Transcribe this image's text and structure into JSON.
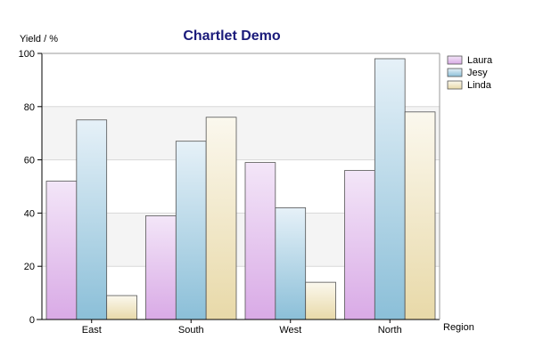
{
  "chart_data": {
    "type": "bar",
    "title": "Chartlet Demo",
    "title_color": "#1a1a7a",
    "xlabel": "Region",
    "ylabel": "Yield / %",
    "categories": [
      "East",
      "South",
      "West",
      "North"
    ],
    "ylim": [
      0,
      100
    ],
    "yticks": [
      0,
      20,
      40,
      60,
      80,
      100
    ],
    "grid": true,
    "legend_position": "top-right",
    "series": [
      {
        "name": "Laura",
        "values": [
          52,
          39,
          59,
          56
        ],
        "color_top": "#f3e6f8",
        "color_bottom": "#d9aae6"
      },
      {
        "name": "Jesy",
        "values": [
          75,
          67,
          42,
          98
        ],
        "color_top": "#e6f1f8",
        "color_bottom": "#8bbfd8"
      },
      {
        "name": "Linda",
        "values": [
          9,
          76,
          14,
          78
        ],
        "color_top": "#fbf8ee",
        "color_bottom": "#e8d9a8"
      }
    ]
  }
}
